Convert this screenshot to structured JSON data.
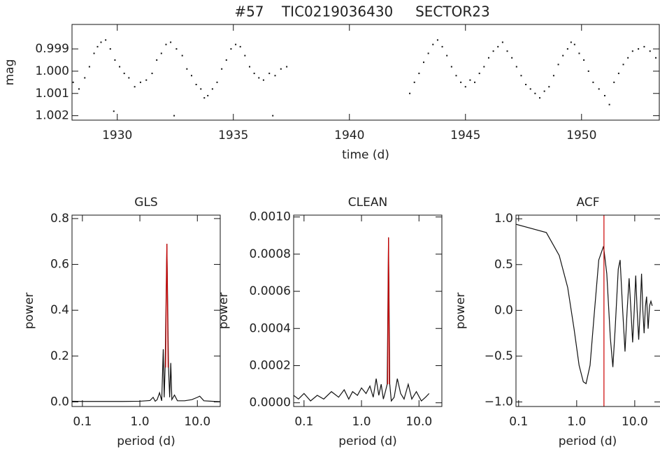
{
  "chart_data": [
    {
      "type": "scatter",
      "title": "#57    TIC0219036430     SECTOR23",
      "x_label": "time (d)",
      "y_label": "mag",
      "xlim": [
        1928.05,
        1953.35
      ],
      "ylim": [
        1.0022,
        0.9979
      ],
      "xticks": [
        1930,
        1935,
        1940,
        1945,
        1950
      ],
      "yticks": [
        0.999,
        {
          "value": 1,
          "label": "1.000"
        },
        1.001,
        1.002
      ],
      "series": [
        {
          "color": "#111111",
          "x": [
            1928.1,
            1928.35,
            1928.6,
            1928.8,
            1929.0,
            1929.15,
            1929.3,
            1929.5,
            1929.7,
            1929.9,
            1930.1,
            1930.3,
            1930.5,
            1930.75,
            1931.0,
            1931.25,
            1931.5,
            1931.7,
            1931.9,
            1932.1,
            1932.3,
            1932.55,
            1932.8,
            1933.0,
            1933.2,
            1933.4,
            1933.6,
            1933.75,
            1933.9,
            1934.1,
            1934.3,
            1934.5,
            1934.7,
            1934.9,
            1935.1,
            1935.3,
            1935.5,
            1935.7,
            1935.9,
            1936.1,
            1936.3,
            1936.55,
            1936.8,
            1937.05,
            1937.3,
            1929.85,
            1932.45,
            1936.7,
            1942.6,
            1942.8,
            1943.0,
            1943.2,
            1943.4,
            1943.6,
            1943.8,
            1944.0,
            1944.2,
            1944.4,
            1944.6,
            1944.8,
            1945.0,
            1945.2,
            1945.4,
            1945.6,
            1945.8,
            1946.0,
            1946.2,
            1946.4,
            1946.6,
            1946.8,
            1947.0,
            1947.2,
            1947.4,
            1947.6,
            1947.8,
            1948.0,
            1948.2,
            1948.4,
            1948.6,
            1948.8,
            1949.0,
            1949.2,
            1949.4,
            1949.55,
            1949.7,
            1949.9,
            1950.1,
            1950.3,
            1950.5,
            1950.75,
            1951.0,
            1951.2,
            1951.4,
            1951.6,
            1951.8,
            1952.0,
            1952.2,
            1952.45,
            1952.7,
            1952.95,
            1953.2
          ],
          "values": [
            1.0005,
            1.0008,
            1.0003,
            0.9998,
            0.9992,
            0.9989,
            0.9987,
            0.9986,
            0.999,
            0.9995,
            0.9998,
            1.0001,
            1.0003,
            1.0007,
            1.0005,
            1.0004,
            1.0001,
            0.9995,
            0.9992,
            0.9988,
            0.9987,
            0.999,
            0.9993,
            0.9999,
            1.0002,
            1.0006,
            1.0008,
            1.0012,
            1.0011,
            1.0008,
            1.0005,
            0.9999,
            0.9995,
            0.999,
            0.9988,
            0.9989,
            0.9993,
            0.9998,
            1.0001,
            1.0003,
            1.0004,
            1.0001,
            1.0002,
            0.9999,
            0.9998,
            1.0018,
            1.002,
            1.002,
            1.001,
            1.0005,
            1.0001,
            0.9996,
            0.9992,
            0.9988,
            0.9986,
            0.9989,
            0.9993,
            0.9998,
            1.0002,
            1.0005,
            1.0007,
            1.0004,
            1.0005,
            1.0001,
            0.9998,
            0.9994,
            0.9991,
            0.9989,
            0.9987,
            0.9991,
            0.9994,
            0.9998,
            1.0002,
            1.0006,
            1.0008,
            1.001,
            1.0012,
            1.0009,
            1.0007,
            1.0002,
            0.9997,
            0.9993,
            0.999,
            0.9987,
            0.9988,
            0.9992,
            0.9995,
            1.0,
            1.0005,
            1.0008,
            1.0011,
            1.0015,
            1.0005,
            1.0001,
            0.9997,
            0.9994,
            0.9991,
            0.999,
            0.9989,
            0.9991,
            0.9994
          ]
        }
      ]
    },
    {
      "type": "line",
      "title": "GLS",
      "x_label": "period (d)",
      "y_label": "power",
      "log_x": true,
      "xlim": [
        0.066,
        25
      ],
      "ylim": [
        -0.02,
        0.815
      ],
      "xticks": [
        0.1,
        {
          "value": 1,
          "label": "1.0"
        },
        {
          "value": 10,
          "label": "10.0"
        }
      ],
      "yticks": [
        {
          "value": 0,
          "label": "0.0"
        },
        0.2,
        0.4,
        0.6,
        0.8
      ],
      "series": [
        {
          "color": "#111111",
          "x": [
            0.066,
            0.1,
            0.2,
            0.5,
            1.0,
            1.5,
            1.7,
            1.85,
            2.0,
            2.2,
            2.4,
            2.55,
            2.65,
            2.75,
            2.95,
            3.15,
            3.3,
            3.45,
            3.6,
            4.0,
            4.5,
            6,
            8,
            10,
            11,
            13,
            20,
            25
          ],
          "values": [
            0.003,
            0.002,
            0.002,
            0.002,
            0.003,
            0.006,
            0.02,
            0.003,
            0.01,
            0.04,
            0.005,
            0.23,
            0.02,
            0.15,
            0.69,
            0.15,
            0.02,
            0.17,
            0.01,
            0.03,
            0.005,
            0.005,
            0.01,
            0.02,
            0.025,
            0.005,
            0.002,
            0.001
          ]
        },
        {
          "color": "#cc0000",
          "x": [
            2.8,
            2.95,
            3.1
          ],
          "values": [
            0.15,
            0.69,
            0.15
          ]
        }
      ]
    },
    {
      "type": "line",
      "title": "CLEAN",
      "x_label": "period (d)",
      "y_label": "power",
      "log_x": true,
      "xlim": [
        0.066,
        25
      ],
      "ylim": [
        -2e-05,
        0.00101
      ],
      "xticks": [
        0.1,
        {
          "value": 1,
          "label": "1.0"
        },
        {
          "value": 10,
          "label": "10.0"
        }
      ],
      "yticks": [
        {
          "value": 0,
          "label": "0.0000"
        },
        {
          "value": 0.0002,
          "label": "0.0002"
        },
        {
          "value": 0.0004,
          "label": "0.0004"
        },
        {
          "value": 0.0006,
          "label": "0.0006"
        },
        {
          "value": 0.0008,
          "label": "0.0008"
        },
        {
          "value": 0.001,
          "label": "0.0010"
        }
      ],
      "series": [
        {
          "color": "#111111",
          "x": [
            0.066,
            0.08,
            0.1,
            0.13,
            0.17,
            0.22,
            0.3,
            0.4,
            0.5,
            0.6,
            0.7,
            0.85,
            1.0,
            1.2,
            1.4,
            1.6,
            1.8,
            2.0,
            2.2,
            2.4,
            2.6,
            2.8,
            2.95,
            3.1,
            3.3,
            3.7,
            4.2,
            4.8,
            5.5,
            6.5,
            7.5,
            9,
            11,
            13,
            15
          ],
          "values": [
            4e-05,
            2e-05,
            5e-05,
            1e-05,
            4e-05,
            2e-05,
            6e-05,
            3e-05,
            7e-05,
            2e-05,
            6e-05,
            4e-05,
            8e-05,
            5e-05,
            9e-05,
            3e-05,
            0.00013,
            4e-05,
            0.0001,
            2e-05,
            6e-05,
            0.0001,
            0.00089,
            0.0001,
            1e-05,
            3e-05,
            0.00013,
            5e-05,
            2e-05,
            0.0001,
            2e-05,
            6e-05,
            1e-05,
            3e-05,
            5e-05
          ]
        },
        {
          "color": "#cc0000",
          "x": [
            2.85,
            2.95,
            3.05
          ],
          "values": [
            0.0001,
            0.00089,
            0.0001
          ]
        }
      ]
    },
    {
      "type": "line",
      "title": "ACF",
      "x_label": "period (d)",
      "y_label": "power",
      "log_x": true,
      "xlim": [
        0.09,
        28
      ],
      "ylim": [
        -1.05,
        1.04
      ],
      "xticks": [
        0.1,
        {
          "value": 1,
          "label": "1.0"
        },
        {
          "value": 10,
          "label": "10.0"
        }
      ],
      "yticks": [
        {
          "value": 1,
          "label": "1.0"
        },
        0.5,
        {
          "value": 0,
          "label": "0.0"
        },
        {
          "value": -0.5,
          "label": "−0.5"
        },
        {
          "value": -1,
          "label": "−1.0"
        }
      ],
      "marker_period": 2.95,
      "marker_color": "#cc0000",
      "series": [
        {
          "color": "#111111",
          "x": [
            0.09,
            0.3,
            0.5,
            0.7,
            0.9,
            1.1,
            1.3,
            1.45,
            1.7,
            2.0,
            2.4,
            2.9,
            3.3,
            3.8,
            4.2,
            4.6,
            5.2,
            5.6,
            6.2,
            6.8,
            7.4,
            8.0,
            8.6,
            9.2,
            9.8,
            10.4,
            11.0,
            11.7,
            12.4,
            13.1,
            13.8,
            14.5,
            15.3,
            16,
            17,
            18,
            19,
            20
          ],
          "values": [
            0.94,
            0.85,
            0.6,
            0.25,
            -0.2,
            -0.6,
            -0.78,
            -0.8,
            -0.6,
            -0.05,
            0.55,
            0.7,
            0.4,
            -0.3,
            -0.62,
            -0.2,
            0.45,
            0.55,
            0.0,
            -0.45,
            0.0,
            0.35,
            0.0,
            -0.35,
            0.0,
            0.38,
            0.0,
            -0.32,
            0.0,
            0.4,
            0.0,
            -0.25,
            0.05,
            0.15,
            -0.2,
            0.05,
            0.1,
            0.05
          ]
        }
      ]
    }
  ]
}
